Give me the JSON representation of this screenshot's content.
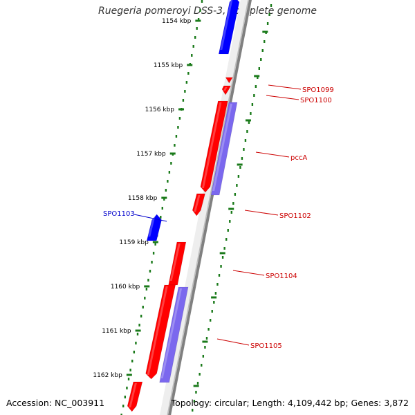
{
  "title": "Ruegeria pomeroyi DSS-3, complete genome",
  "footer": {
    "accession_label": "Accession:",
    "accession": "NC_003911",
    "topology_label": "Topology:",
    "topology": "circular",
    "length_label": "Length:",
    "length": "4,109,442 bp",
    "genes_label": "Genes:",
    "genes": "3,872"
  },
  "scale": {
    "unit": "kbp",
    "ticks": [
      "1154 kbp",
      "1155 kbp",
      "1156 kbp",
      "1157 kbp",
      "1158 kbp",
      "1159 kbp",
      "1160 kbp",
      "1161 kbp",
      "1162 kbp"
    ]
  },
  "colors": {
    "forward_cds": "#ff0000",
    "reverse_cds": "#0000ff",
    "feature_strand": "#7b68ee",
    "backbone": "#808080",
    "ruler_dots": "#1a7a1a",
    "label_forward": "#cc0000",
    "label_reverse": "#0000cc"
  },
  "gene_labels": [
    {
      "text": "SPO1099",
      "strand": "forward"
    },
    {
      "text": "SPO1100",
      "strand": "forward"
    },
    {
      "text": "pccA",
      "strand": "forward"
    },
    {
      "text": "SPO1102",
      "strand": "forward"
    },
    {
      "text": "SPO1103",
      "strand": "reverse"
    },
    {
      "text": "SPO1104",
      "strand": "forward"
    },
    {
      "text": "SPO1105",
      "strand": "forward"
    }
  ]
}
